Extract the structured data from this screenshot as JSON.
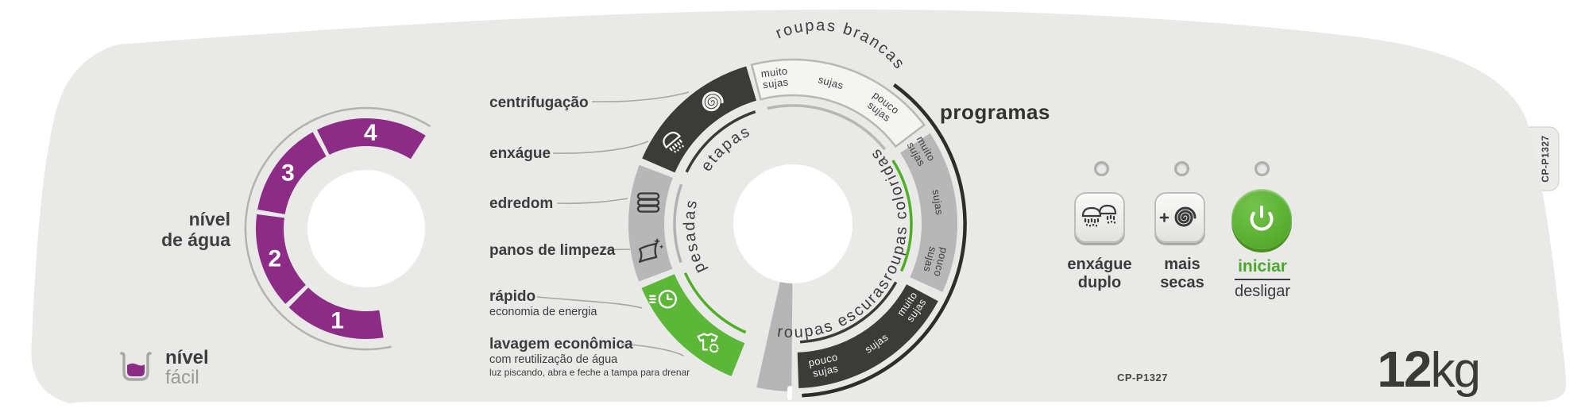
{
  "model": "CP-P1327",
  "capacity": {
    "value": "12",
    "unit": "kg"
  },
  "water_dial": {
    "label_line1": "nível",
    "label_line2": "de água",
    "levels": [
      "1",
      "2",
      "3",
      "4"
    ]
  },
  "brand": {
    "logo_line1": "nível",
    "logo_line2": "fácil"
  },
  "programs": {
    "title": "programas",
    "families": {
      "etapas": "etapas",
      "pesadas": "pesadas",
      "brancas": "roupas brancas",
      "coloridas": "roupas coloridas",
      "escuras": "roupas escuras"
    },
    "soil": {
      "muito": {
        "l1": "muito",
        "l2": "sujas"
      },
      "mid": "sujas",
      "pouco": {
        "l1": "pouco",
        "l2": "sujas"
      }
    }
  },
  "cycles": [
    {
      "title": "centrifugação"
    },
    {
      "title": "enxágue"
    },
    {
      "title": "edredom"
    },
    {
      "title": "panos de limpeza"
    },
    {
      "title": "rápido",
      "subtitle": "economia de energia"
    },
    {
      "title": "lavagem econômica",
      "subtitle": "com reutilização de água",
      "note": "luz piscando, abra e feche a tampa para drenar"
    }
  ],
  "buttons": {
    "rinse": {
      "line1": "enxágue",
      "line2": "duplo"
    },
    "spin": {
      "line1": "mais",
      "line2": "secas"
    },
    "power": {
      "start": "iniciar",
      "stop": "desligar"
    }
  },
  "colors": {
    "purple": "#8c2c87",
    "green": "#5cb637",
    "green_accent": "#4fae27",
    "dark": "#3b3b3a",
    "gray": "#b6b7b6",
    "panel": "#e9e9e7"
  }
}
